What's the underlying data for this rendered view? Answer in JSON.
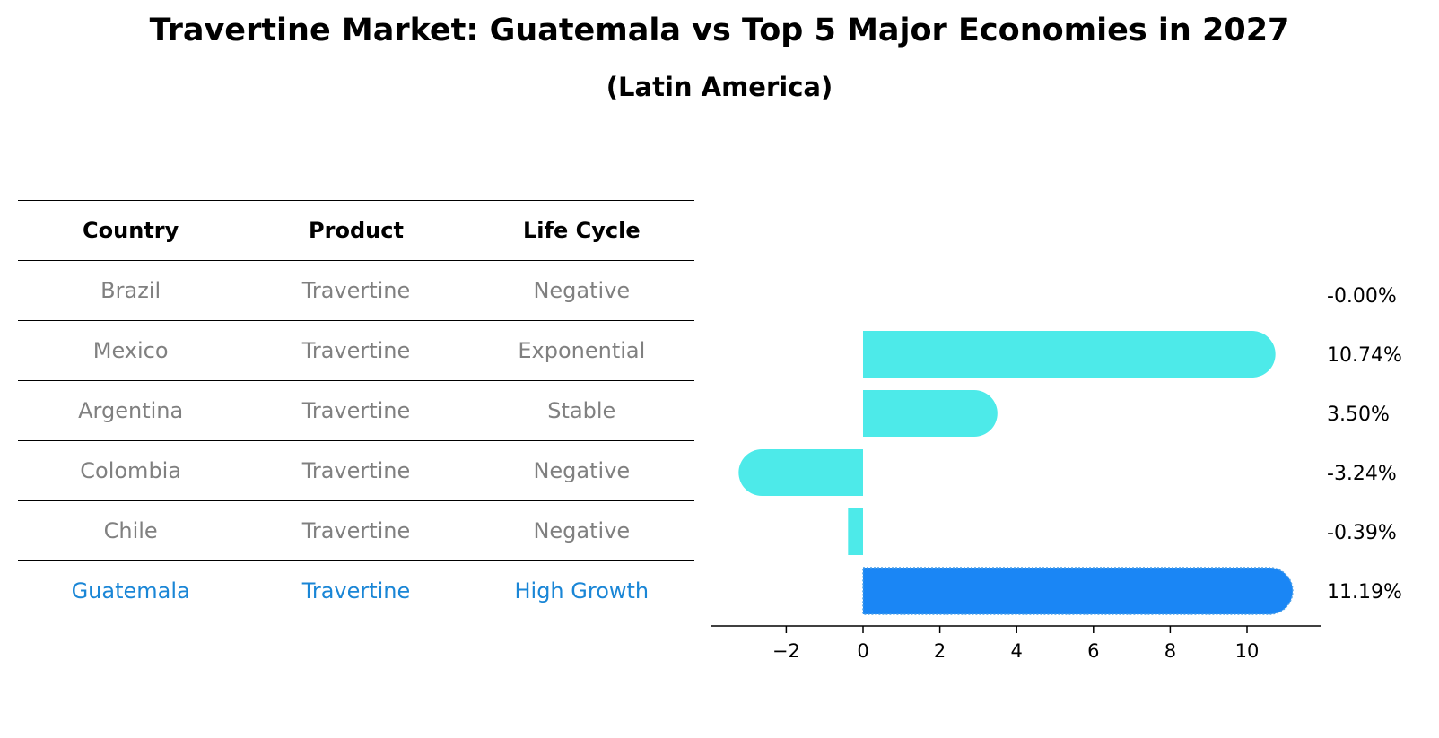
{
  "title": "Travertine Market: Guatemala vs Top 5 Major Economies in 2027",
  "subtitle": "(Latin America)",
  "table": {
    "headers": [
      "Country",
      "Product",
      "Life Cycle"
    ],
    "rows": [
      {
        "country": "Brazil",
        "product": "Travertine",
        "life_cycle": "Negative"
      },
      {
        "country": "Mexico",
        "product": "Travertine",
        "life_cycle": "Exponential"
      },
      {
        "country": "Argentina",
        "product": "Travertine",
        "life_cycle": "Stable"
      },
      {
        "country": "Colombia",
        "product": "Travertine",
        "life_cycle": "Negative"
      },
      {
        "country": "Chile",
        "product": "Travertine",
        "life_cycle": "Negative"
      },
      {
        "country": "Guatemala",
        "product": "Travertine",
        "life_cycle": "High Growth"
      }
    ]
  },
  "chart_data": {
    "type": "bar",
    "orientation": "horizontal",
    "categories": [
      "Brazil",
      "Mexico",
      "Argentina",
      "Colombia",
      "Chile",
      "Guatemala"
    ],
    "values": [
      -0.0,
      10.74,
      3.5,
      -3.24,
      -0.39,
      11.19
    ],
    "value_labels": [
      "-0.00%",
      "10.74%",
      "3.50%",
      "-3.24%",
      "-0.39%",
      "11.19%"
    ],
    "highlight": "Guatemala",
    "xlim": [
      -4,
      12
    ],
    "xticks": [
      -2,
      0,
      2,
      4,
      6,
      8,
      10
    ],
    "xtick_labels": [
      "−2",
      "0",
      "2",
      "4",
      "6",
      "8",
      "10"
    ],
    "colors": {
      "default": "#4deae9",
      "highlight": "#1a86f5"
    },
    "grid": false
  }
}
